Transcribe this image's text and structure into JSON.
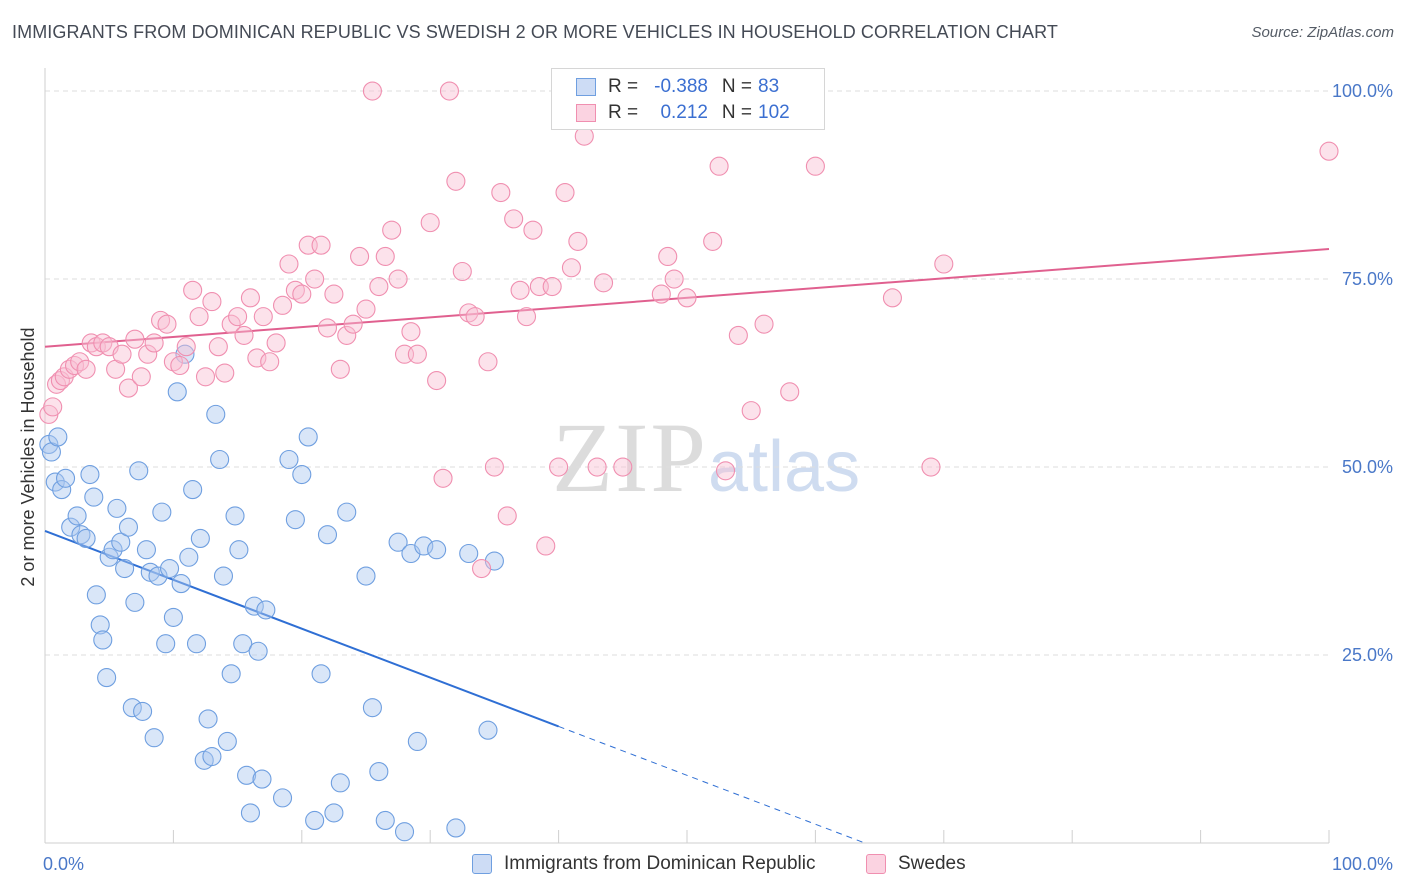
{
  "title": "IMMIGRANTS FROM DOMINICAN REPUBLIC VS SWEDISH 2 OR MORE VEHICLES IN HOUSEHOLD CORRELATION CHART",
  "source": "Source: ZipAtlas.com",
  "watermark": {
    "zip": "ZIP",
    "atlas": "atlas"
  },
  "legend_top": {
    "rows": [
      {
        "r_label": "R =",
        "r_value": "-0.388",
        "n_label": "N =",
        "n_value": "83",
        "color": "#6f9fe0"
      },
      {
        "r_label": "R =",
        "r_value": "0.212",
        "n_label": "N =",
        "n_value": "102",
        "color": "#f08fb0"
      }
    ]
  },
  "legend_bottom": [
    {
      "label": "Immigrants from Dominican Republic",
      "color": "#6f9fe0"
    },
    {
      "label": "Swedes",
      "color": "#f08fb0"
    }
  ],
  "chart_data": {
    "type": "scatter",
    "ylabel": "2 or more Vehicles in Household",
    "xlim": [
      0,
      100
    ],
    "ylim": [
      0,
      102
    ],
    "x_tick_labels": [
      "0.0%",
      "100.0%"
    ],
    "y_tick_labels": [
      "100.0%",
      "75.0%",
      "50.0%",
      "25.0%"
    ],
    "y_ticks": [
      100,
      75,
      50,
      25
    ],
    "grid": true,
    "series": [
      {
        "name": "Immigrants from Dominican Republic",
        "color": "#6f9fe0",
        "trend": {
          "x0": 0,
          "y0": 41.5,
          "x1": 40,
          "y1": 15.5,
          "dash_to_x": 64
        },
        "points": [
          [
            0.3,
            53
          ],
          [
            0.5,
            52
          ],
          [
            0.8,
            48
          ],
          [
            1,
            54
          ],
          [
            1.3,
            47
          ],
          [
            1.6,
            48.5
          ],
          [
            2,
            42
          ],
          [
            2.5,
            43.5
          ],
          [
            2.8,
            41
          ],
          [
            3.2,
            40.5
          ],
          [
            3.5,
            49
          ],
          [
            3.8,
            46
          ],
          [
            4,
            33
          ],
          [
            4.3,
            29
          ],
          [
            4.5,
            27
          ],
          [
            4.8,
            22
          ],
          [
            5,
            38
          ],
          [
            5.3,
            39
          ],
          [
            5.6,
            44.5
          ],
          [
            5.9,
            40
          ],
          [
            6.2,
            36.5
          ],
          [
            6.5,
            42
          ],
          [
            6.8,
            18
          ],
          [
            7,
            32
          ],
          [
            7.3,
            49.5
          ],
          [
            7.6,
            17.5
          ],
          [
            7.9,
            39
          ],
          [
            8.2,
            36
          ],
          [
            8.5,
            14
          ],
          [
            8.8,
            35.5
          ],
          [
            9.1,
            44
          ],
          [
            9.4,
            26.5
          ],
          [
            9.7,
            36.5
          ],
          [
            10,
            30
          ],
          [
            10.3,
            60
          ],
          [
            10.6,
            34.5
          ],
          [
            10.9,
            65
          ],
          [
            11.2,
            38
          ],
          [
            11.5,
            47
          ],
          [
            11.8,
            26.5
          ],
          [
            12.1,
            40.5
          ],
          [
            12.4,
            11
          ],
          [
            12.7,
            16.5
          ],
          [
            13,
            11.5
          ],
          [
            13.3,
            57
          ],
          [
            13.6,
            51
          ],
          [
            13.9,
            35.5
          ],
          [
            14.2,
            13.5
          ],
          [
            14.5,
            22.5
          ],
          [
            14.8,
            43.5
          ],
          [
            15.1,
            39
          ],
          [
            15.4,
            26.5
          ],
          [
            15.7,
            9
          ],
          [
            16,
            4
          ],
          [
            16.3,
            31.5
          ],
          [
            16.6,
            25.5
          ],
          [
            16.9,
            8.5
          ],
          [
            17.2,
            31
          ],
          [
            18.5,
            6
          ],
          [
            19,
            51
          ],
          [
            19.5,
            43
          ],
          [
            20,
            49
          ],
          [
            20.5,
            54
          ],
          [
            21,
            3
          ],
          [
            21.5,
            22.5
          ],
          [
            22,
            41
          ],
          [
            22.5,
            4
          ],
          [
            23,
            8
          ],
          [
            23.5,
            44
          ],
          [
            25,
            35.5
          ],
          [
            25.5,
            18
          ],
          [
            26,
            9.5
          ],
          [
            26.5,
            3
          ],
          [
            27.5,
            40
          ],
          [
            28,
            1.5
          ],
          [
            28.5,
            38.5
          ],
          [
            29,
            13.5
          ],
          [
            29.5,
            39.5
          ],
          [
            30.5,
            39
          ],
          [
            32,
            2
          ],
          [
            33,
            38.5
          ],
          [
            34.5,
            15
          ],
          [
            35,
            37.5
          ]
        ]
      },
      {
        "name": "Swedes",
        "color": "#f08fb0",
        "trend": {
          "x0": 0,
          "y0": 66,
          "x1": 100,
          "y1": 79
        },
        "points": [
          [
            0.3,
            57
          ],
          [
            0.6,
            58
          ],
          [
            0.9,
            61
          ],
          [
            1.2,
            61.5
          ],
          [
            1.5,
            62
          ],
          [
            1.9,
            63
          ],
          [
            2.3,
            63.5
          ],
          [
            2.7,
            64
          ],
          [
            3.2,
            63
          ],
          [
            3.6,
            66.5
          ],
          [
            4,
            66
          ],
          [
            4.5,
            66.5
          ],
          [
            5,
            66
          ],
          [
            5.5,
            63
          ],
          [
            6,
            65
          ],
          [
            6.5,
            60.5
          ],
          [
            7,
            67
          ],
          [
            7.5,
            62
          ],
          [
            8,
            65
          ],
          [
            8.5,
            66.5
          ],
          [
            9,
            69.5
          ],
          [
            9.5,
            69
          ],
          [
            10,
            64
          ],
          [
            10.5,
            63.5
          ],
          [
            11,
            66
          ],
          [
            11.5,
            73.5
          ],
          [
            12,
            70
          ],
          [
            12.5,
            62
          ],
          [
            13,
            72
          ],
          [
            13.5,
            66
          ],
          [
            14,
            62.5
          ],
          [
            14.5,
            69
          ],
          [
            15,
            70
          ],
          [
            15.5,
            67.5
          ],
          [
            16,
            72.5
          ],
          [
            16.5,
            64.5
          ],
          [
            17,
            70
          ],
          [
            17.5,
            64
          ],
          [
            18,
            66.5
          ],
          [
            18.5,
            71.5
          ],
          [
            19,
            77
          ],
          [
            19.5,
            73.5
          ],
          [
            20,
            73
          ],
          [
            20.5,
            79.5
          ],
          [
            21,
            75
          ],
          [
            21.5,
            79.5
          ],
          [
            22,
            68.5
          ],
          [
            22.5,
            73
          ],
          [
            23,
            63
          ],
          [
            23.5,
            67.5
          ],
          [
            24,
            69
          ],
          [
            24.5,
            78
          ],
          [
            25,
            71
          ],
          [
            25.5,
            100
          ],
          [
            26,
            74
          ],
          [
            26.5,
            78
          ],
          [
            27,
            81.5
          ],
          [
            27.5,
            75
          ],
          [
            28,
            65
          ],
          [
            28.5,
            68
          ],
          [
            29,
            65
          ],
          [
            30,
            82.5
          ],
          [
            30.5,
            61.5
          ],
          [
            31,
            48.5
          ],
          [
            31.5,
            100
          ],
          [
            32,
            88
          ],
          [
            32.5,
            76
          ],
          [
            33,
            70.5
          ],
          [
            33.5,
            70
          ],
          [
            34,
            36.5
          ],
          [
            34.5,
            64
          ],
          [
            35,
            50
          ],
          [
            35.5,
            86.5
          ],
          [
            36,
            43.5
          ],
          [
            36.5,
            83
          ],
          [
            37,
            73.5
          ],
          [
            37.5,
            70
          ],
          [
            38,
            81.5
          ],
          [
            38.5,
            74
          ],
          [
            39,
            39.5
          ],
          [
            39.5,
            74
          ],
          [
            40,
            50
          ],
          [
            40.5,
            86.5
          ],
          [
            41,
            76.5
          ],
          [
            41.5,
            80
          ],
          [
            42,
            94
          ],
          [
            43,
            50
          ],
          [
            43.5,
            74.5
          ],
          [
            45,
            50
          ],
          [
            48,
            73
          ],
          [
            48.5,
            78
          ],
          [
            49,
            75
          ],
          [
            50,
            72.5
          ],
          [
            52,
            80
          ],
          [
            52.5,
            90
          ],
          [
            53,
            49.5
          ],
          [
            54,
            67.5
          ],
          [
            55,
            57.5
          ],
          [
            56,
            69
          ],
          [
            58,
            60
          ],
          [
            60,
            90
          ],
          [
            66,
            72.5
          ],
          [
            69,
            50
          ],
          [
            70,
            77
          ],
          [
            100,
            92
          ]
        ]
      }
    ]
  }
}
